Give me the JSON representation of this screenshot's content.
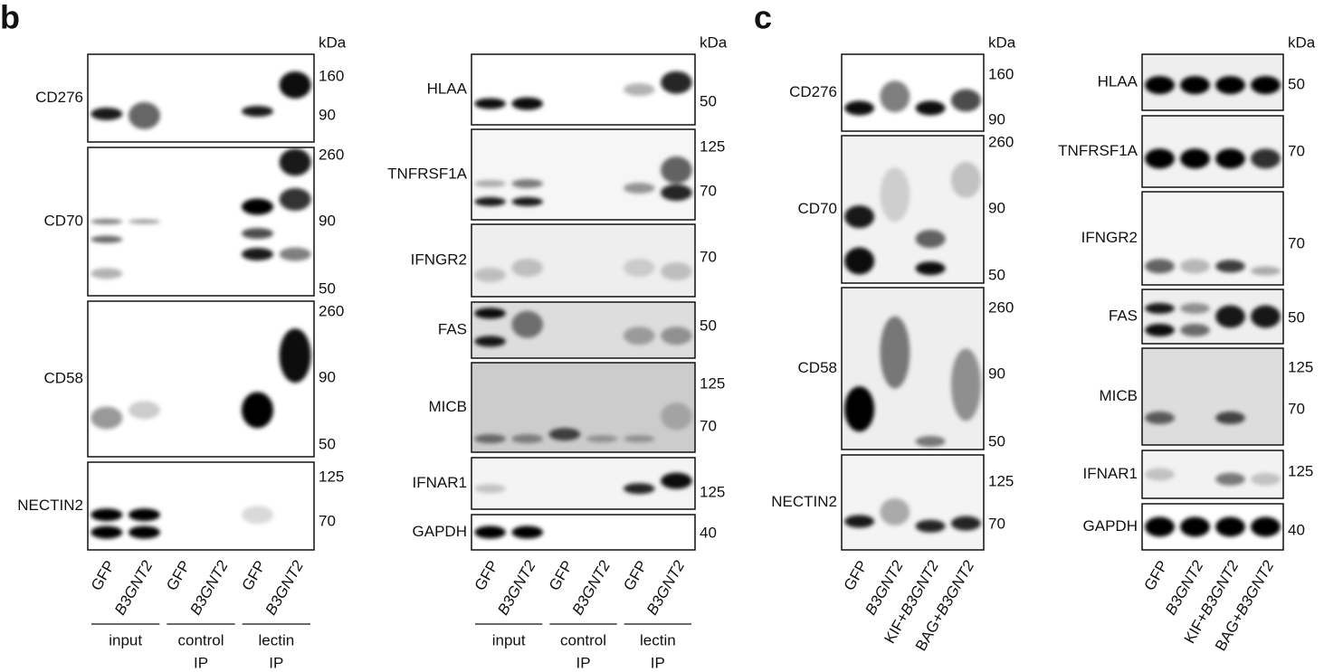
{
  "panels": [
    {
      "letter": "b",
      "columns": [
        {
          "unit": "kDa",
          "blots": [
            {
              "name": "CD276",
              "markers": [
                160,
                90
              ]
            },
            {
              "name": "CD70",
              "markers": [
                260,
                90,
                50
              ]
            },
            {
              "name": "CD58",
              "markers": [
                260,
                90,
                50
              ]
            },
            {
              "name": "NECTIN2",
              "markers": [
                125,
                70
              ]
            }
          ],
          "lanes": [
            [
              {
                "text": "GFP"
              }
            ],
            [
              {
                "text": "B3GNT2",
                "italic": true
              }
            ],
            [
              {
                "text": "GFP"
              }
            ],
            [
              {
                "text": "B3GNT2",
                "italic": true
              }
            ],
            [
              {
                "text": "GFP"
              }
            ],
            [
              {
                "text": "B3GNT2",
                "italic": true
              }
            ]
          ],
          "groups": [
            {
              "lines": [
                "input"
              ]
            },
            {
              "lines": [
                "control",
                "IP"
              ]
            },
            {
              "lines": [
                "lectin",
                "IP"
              ]
            }
          ]
        },
        {
          "unit": "kDa",
          "blots": [
            {
              "name": "HLAA",
              "markers": [
                50
              ]
            },
            {
              "name": "TNFRSF1A",
              "markers": [
                125,
                70
              ]
            },
            {
              "name": "IFNGR2",
              "markers": [
                70
              ]
            },
            {
              "name": "FAS",
              "markers": [
                50
              ]
            },
            {
              "name": "MICB",
              "markers": [
                125,
                70
              ]
            },
            {
              "name": "IFNAR1",
              "markers": [
                125
              ]
            },
            {
              "name": "GAPDH",
              "markers": [
                40
              ]
            }
          ],
          "lanes": [
            [
              {
                "text": "GFP"
              }
            ],
            [
              {
                "text": "B3GNT2",
                "italic": true
              }
            ],
            [
              {
                "text": "GFP"
              }
            ],
            [
              {
                "text": "B3GNT2",
                "italic": true
              }
            ],
            [
              {
                "text": "GFP"
              }
            ],
            [
              {
                "text": "B3GNT2",
                "italic": true
              }
            ]
          ],
          "groups": [
            {
              "lines": [
                "input"
              ]
            },
            {
              "lines": [
                "control",
                "IP"
              ]
            },
            {
              "lines": [
                "lectin",
                "IP"
              ]
            }
          ]
        }
      ]
    },
    {
      "letter": "c",
      "columns": [
        {
          "unit": "kDa",
          "blots": [
            {
              "name": "CD276",
              "markers": [
                160,
                90
              ]
            },
            {
              "name": "CD70",
              "markers": [
                260,
                90,
                50
              ]
            },
            {
              "name": "CD58",
              "markers": [
                260,
                90,
                50
              ]
            },
            {
              "name": "NECTIN2",
              "markers": [
                125,
                70
              ]
            }
          ],
          "lanes": [
            [
              {
                "text": "GFP"
              }
            ],
            [
              {
                "text": "B3GNT2",
                "italic": true
              }
            ],
            [
              {
                "text": "KIF+"
              },
              {
                "text": "B3GNT2",
                "italic": true
              }
            ],
            [
              {
                "text": "BAG+"
              },
              {
                "text": "B3GNT2",
                "italic": true
              }
            ]
          ]
        },
        {
          "unit": "kDa",
          "blots": [
            {
              "name": "HLAA",
              "markers": [
                50
              ]
            },
            {
              "name": "TNFRSF1A",
              "markers": [
                70
              ]
            },
            {
              "name": "IFNGR2",
              "markers": [
                70
              ]
            },
            {
              "name": "FAS",
              "markers": [
                50
              ]
            },
            {
              "name": "MICB",
              "markers": [
                125,
                70
              ]
            },
            {
              "name": "IFNAR1",
              "markers": [
                125
              ]
            },
            {
              "name": "GAPDH",
              "markers": [
                40
              ]
            }
          ],
          "lanes": [
            [
              {
                "text": "GFP"
              }
            ],
            [
              {
                "text": "B3GNT2",
                "italic": true
              }
            ],
            [
              {
                "text": "KIF+"
              },
              {
                "text": "B3GNT2",
                "italic": true
              }
            ],
            [
              {
                "text": "BAG+"
              },
              {
                "text": "B3GNT2",
                "italic": true
              }
            ]
          ]
        }
      ]
    }
  ]
}
